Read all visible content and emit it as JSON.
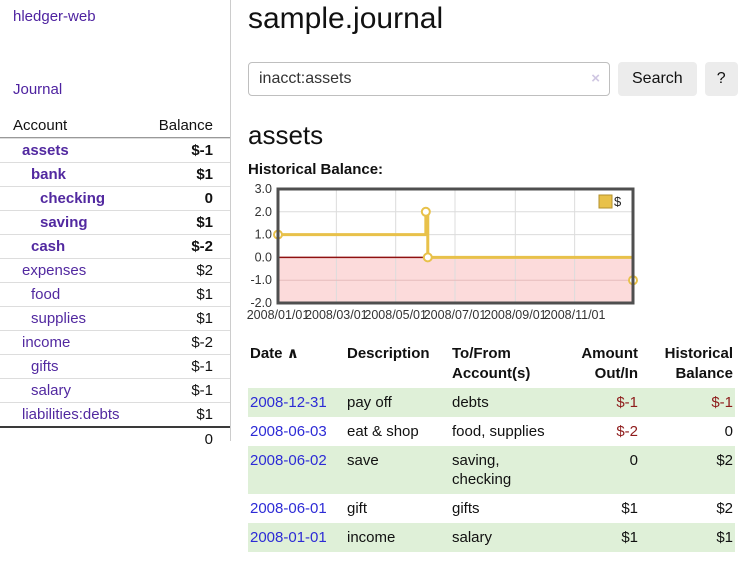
{
  "app": {
    "brand": "hledger-web",
    "nav": {
      "journal": "Journal"
    }
  },
  "sidebar": {
    "table": {
      "headers": {
        "account": "Account",
        "balance": "Balance"
      },
      "rows": [
        {
          "name": "assets",
          "style": "d1 emph",
          "balance": "$-1",
          "balance_style": "emph neg"
        },
        {
          "name": "bank",
          "style": "d2 emph",
          "balance": "$1",
          "balance_style": "emph"
        },
        {
          "name": "checking",
          "style": "d3 emph",
          "balance": "0",
          "balance_style": "emph"
        },
        {
          "name": "saving",
          "style": "d3 emph",
          "balance": "$1",
          "balance_style": "emph"
        },
        {
          "name": "cash",
          "style": "d2 emph",
          "balance": "$-2",
          "balance_style": "emph neg"
        },
        {
          "name": "expenses",
          "style": "d1",
          "balance": "$2",
          "balance_style": ""
        },
        {
          "name": "food",
          "style": "d2",
          "balance": "$1",
          "balance_style": ""
        },
        {
          "name": "supplies",
          "style": "d2",
          "balance": "$1",
          "balance_style": ""
        },
        {
          "name": "income",
          "style": "d1",
          "balance": "$-2",
          "balance_style": "neg-soft"
        },
        {
          "name": "gifts",
          "style": "d2",
          "balance": "$-1",
          "balance_style": "neg-soft"
        },
        {
          "name": "salary",
          "style": "d2 link-blue",
          "balance": "$-1",
          "balance_style": "neg-soft"
        },
        {
          "name": "liabilities:debts",
          "style": "d1",
          "balance": "$1",
          "balance_style": ""
        }
      ],
      "total": "0"
    }
  },
  "main": {
    "title": "sample.journal",
    "search": {
      "value": "inacct:assets",
      "clear_icon": "×",
      "button_label": "Search",
      "help_label": "?"
    },
    "account_heading": "assets",
    "chart_label": "Historical Balance:"
  },
  "chart_data": {
    "type": "line",
    "step": true,
    "title": "Historical Balance",
    "legend": {
      "label": "$",
      "position": "top-right"
    },
    "ylim": [
      -2.0,
      3.0
    ],
    "yticks": [
      3.0,
      2.0,
      1.0,
      0.0,
      -1.0,
      -2.0
    ],
    "xticks": [
      {
        "label": "2008/01/01",
        "day": 0
      },
      {
        "label": "2008/03/01",
        "day": 60
      },
      {
        "label": "2008/05/01",
        "day": 121
      },
      {
        "label": "2008/07/01",
        "day": 182
      },
      {
        "label": "2008/09/01",
        "day": 244
      },
      {
        "label": "2008/11/01",
        "day": 305
      }
    ],
    "x_total_days": 365,
    "points": [
      {
        "date": "2008-01-01",
        "day": 0,
        "value": 1
      },
      {
        "date": "2008-06-01",
        "day": 152,
        "value": 2
      },
      {
        "date": "2008-06-03",
        "day": 154,
        "value": 0
      },
      {
        "date": "2008-12-31",
        "day": 365,
        "value": -1
      }
    ],
    "grid": true,
    "colors": {
      "line": "#e8c14a",
      "marker_fill": "#ffffff",
      "legend_swatch": "#e8c14a",
      "legend_swatch_border": "#b3912e",
      "negative_region": "#fcdbdb",
      "zero_line": "#8f1010",
      "grid": "#dcdcdc",
      "grid_negative": "#e5bcbc",
      "border": "#4f4f4f",
      "tick_text": "#333333"
    }
  },
  "register": {
    "headers": {
      "date": "Date",
      "sort_arrow": "∧",
      "description": "Description",
      "accounts": "To/From Account(s)",
      "amount": "Amount Out/In",
      "balance": "Historical Balance"
    },
    "rows": [
      {
        "date": "2008-12-31",
        "description": "pay off",
        "accounts": "debts",
        "amount": "$-1",
        "amount_style": "neg",
        "balance": "$-1",
        "balance_style": "neg"
      },
      {
        "date": "2008-06-03",
        "description": "eat & shop",
        "accounts": "food, supplies",
        "amount": "$-2",
        "amount_style": "neg",
        "balance": "0",
        "balance_style": ""
      },
      {
        "date": "2008-06-02",
        "description": "save",
        "accounts": "saving, checking",
        "amount": "0",
        "amount_style": "",
        "balance": "$2",
        "balance_style": ""
      },
      {
        "date": "2008-06-01",
        "description": "gift",
        "accounts": "gifts",
        "amount": "$1",
        "amount_style": "",
        "balance": "$2",
        "balance_style": ""
      },
      {
        "date": "2008-01-01",
        "description": "income",
        "accounts": "salary",
        "amount": "$1",
        "amount_style": "",
        "balance": "$1",
        "balance_style": ""
      }
    ]
  }
}
